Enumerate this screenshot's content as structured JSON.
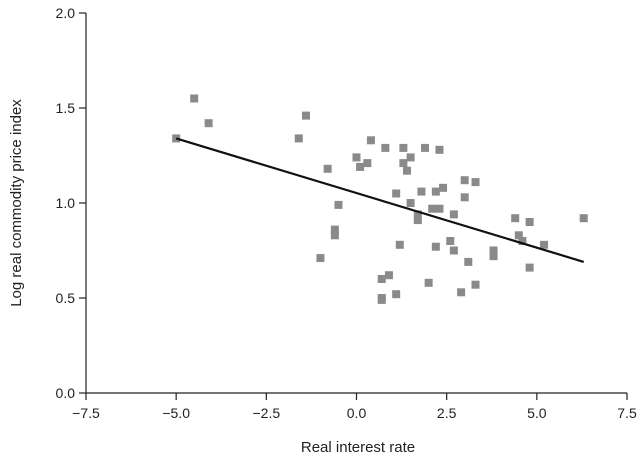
{
  "chart_data": {
    "type": "scatter",
    "title": "",
    "xlabel": "Real interest rate",
    "ylabel": "Log real commodity price index",
    "xlim": [
      -7.5,
      7.5
    ],
    "ylim": [
      0.0,
      2.0
    ],
    "x_ticks": [
      "−7.5",
      "−5.0",
      "−2.5",
      "0.0",
      "2.5",
      "5.0",
      "7.5"
    ],
    "y_ticks": [
      "0.0",
      "0.5",
      "1.0",
      "1.5",
      "2.0"
    ],
    "grid": false,
    "colors": {
      "points": "#8a8a8a",
      "trendline": "#111111",
      "axis": "#222222"
    },
    "series": [
      {
        "values": [
          {
            "x": -5.0,
            "y": 1.34
          },
          {
            "x": -4.5,
            "y": 1.55
          },
          {
            "x": -4.1,
            "y": 1.42
          },
          {
            "x": -1.6,
            "y": 1.34
          },
          {
            "x": -1.4,
            "y": 1.46
          },
          {
            "x": -1.0,
            "y": 0.71
          },
          {
            "x": -0.8,
            "y": 1.18
          },
          {
            "x": -0.6,
            "y": 0.83
          },
          {
            "x": -0.6,
            "y": 0.86
          },
          {
            "x": -0.5,
            "y": 0.99
          },
          {
            "x": 0.0,
            "y": 1.24
          },
          {
            "x": 0.1,
            "y": 1.19
          },
          {
            "x": 0.3,
            "y": 1.21
          },
          {
            "x": 0.4,
            "y": 1.33
          },
          {
            "x": 0.7,
            "y": 0.49
          },
          {
            "x": 0.7,
            "y": 0.5
          },
          {
            "x": 0.7,
            "y": 0.6
          },
          {
            "x": 0.8,
            "y": 1.29
          },
          {
            "x": 0.9,
            "y": 0.62
          },
          {
            "x": 1.1,
            "y": 0.52
          },
          {
            "x": 1.1,
            "y": 1.05
          },
          {
            "x": 1.2,
            "y": 0.78
          },
          {
            "x": 1.3,
            "y": 1.29
          },
          {
            "x": 1.3,
            "y": 1.21
          },
          {
            "x": 1.4,
            "y": 1.17
          },
          {
            "x": 1.5,
            "y": 1.0
          },
          {
            "x": 1.5,
            "y": 1.24
          },
          {
            "x": 1.7,
            "y": 0.91
          },
          {
            "x": 1.7,
            "y": 0.94
          },
          {
            "x": 1.8,
            "y": 1.06
          },
          {
            "x": 1.9,
            "y": 1.29
          },
          {
            "x": 2.0,
            "y": 0.58
          },
          {
            "x": 2.1,
            "y": 0.97
          },
          {
            "x": 2.2,
            "y": 1.06
          },
          {
            "x": 2.2,
            "y": 0.77
          },
          {
            "x": 2.3,
            "y": 0.97
          },
          {
            "x": 2.3,
            "y": 1.28
          },
          {
            "x": 2.4,
            "y": 1.08
          },
          {
            "x": 2.6,
            "y": 0.8
          },
          {
            "x": 2.7,
            "y": 0.75
          },
          {
            "x": 2.7,
            "y": 0.94
          },
          {
            "x": 2.9,
            "y": 0.53
          },
          {
            "x": 3.0,
            "y": 1.03
          },
          {
            "x": 3.0,
            "y": 1.12
          },
          {
            "x": 3.1,
            "y": 0.69
          },
          {
            "x": 3.3,
            "y": 1.11
          },
          {
            "x": 3.3,
            "y": 0.57
          },
          {
            "x": 3.8,
            "y": 0.72
          },
          {
            "x": 3.8,
            "y": 0.75
          },
          {
            "x": 4.4,
            "y": 0.92
          },
          {
            "x": 4.5,
            "y": 0.83
          },
          {
            "x": 4.6,
            "y": 0.8
          },
          {
            "x": 4.8,
            "y": 0.9
          },
          {
            "x": 4.8,
            "y": 0.66
          },
          {
            "x": 5.2,
            "y": 0.78
          },
          {
            "x": 6.3,
            "y": 0.92
          }
        ]
      }
    ],
    "trendline": {
      "x": [
        -5.0,
        6.3
      ],
      "y": [
        1.34,
        0.69
      ]
    }
  }
}
